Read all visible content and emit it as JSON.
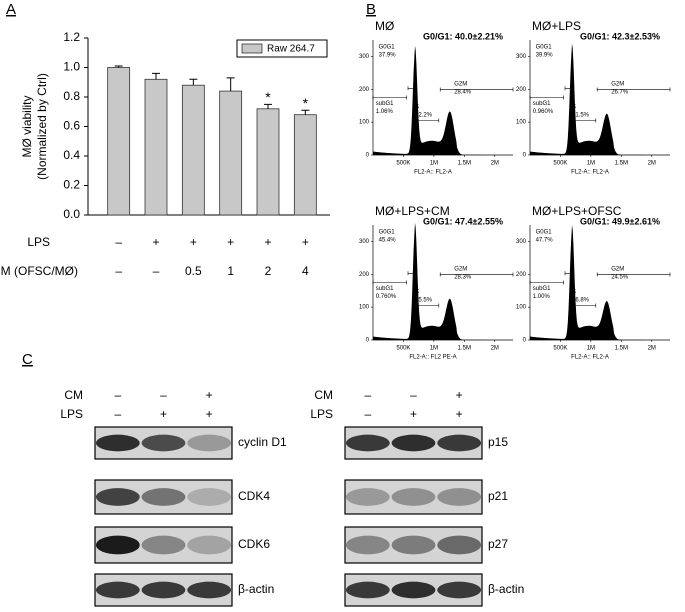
{
  "panel_labels": [
    "A",
    "B",
    "C"
  ],
  "chart_data": {
    "type": "bar",
    "ylabel": [
      "MØ viability",
      "(Normalized by Ctrl)"
    ],
    "categories": [
      null,
      null,
      null,
      null,
      null,
      null
    ],
    "series": [
      {
        "name": "Raw 264.7",
        "color": "#c8c8c8",
        "values": [
          1.0,
          0.92,
          0.88,
          0.84,
          0.72,
          0.68
        ],
        "errors": [
          0.01,
          0.04,
          0.04,
          0.09,
          0.03,
          0.03
        ]
      }
    ],
    "star_labels": [
      null,
      null,
      null,
      null,
      "*",
      "*"
    ],
    "ylim": [
      0,
      1.2
    ],
    "yticks": [
      {
        "value": 0,
        "label": "0.0"
      },
      {
        "value": 0.2,
        "label": "0.2"
      },
      {
        "value": 0.4,
        "label": "0.4"
      },
      {
        "value": 0.6,
        "label": "0.6"
      },
      {
        "value": 0.8,
        "label": "0.8"
      },
      {
        "value": 1.0,
        "label": "1.0"
      },
      {
        "value": 1.2,
        "label": "1.2"
      }
    ],
    "legend": "upper right",
    "treatment_rows": [
      {
        "name": "LPS",
        "values": [
          "–",
          "+",
          "+",
          "+",
          "+",
          "+"
        ]
      },
      {
        "name": "CM (OFSC/MØ)",
        "values": [
          "–",
          "–",
          "0.5",
          "1",
          "2",
          "4"
        ]
      }
    ]
  },
  "flow": {
    "ylim": [
      0,
      350
    ],
    "yticks": [
      0,
      100,
      200,
      300
    ],
    "xlim": [
      0,
      2300000
    ],
    "xticks": [
      {
        "value": 500000,
        "label": "500K"
      },
      {
        "value": 1000000,
        "label": "1M"
      },
      {
        "value": 1500000,
        "label": "1.5M"
      },
      {
        "value": 2000000,
        "label": "2M"
      }
    ],
    "gate_names": [
      "G0G1",
      "subG1",
      "S",
      "G2M"
    ],
    "panels": [
      {
        "title": "MØ",
        "summary": "G0/G1: 40.0±2.21%",
        "gates": [
          "37.9%",
          "1.06%",
          "22.2%",
          "28.4%"
        ],
        "xlabel": "FL2-A:: FL2-A"
      },
      {
        "title": "MØ+LPS",
        "summary": "G0/G1: 42.3±2.53%",
        "gates": [
          "39.9%",
          "0.960%",
          "21.5%",
          "26.7%"
        ],
        "xlabel": "FL2-A:: FL2-A"
      },
      {
        "title": "MØ+LPS+CM",
        "summary": "G0/G1: 47.4±2.55%",
        "gates": [
          "45.4%",
          "0.760%",
          "25.5%",
          "28.3%"
        ],
        "xlabel": "FL2-A:: FL2 PE-A"
      },
      {
        "title": "MØ+LPS+OFSC",
        "summary": "G0/G1: 49.9±2.61%",
        "gates": [
          "47.7%",
          "1.00%",
          "26.8%",
          "24.5%"
        ],
        "xlabel": "FL2-A:: FL2-A"
      }
    ]
  },
  "western": {
    "blots": [
      {
        "rows": [
          {
            "name": "CM",
            "values": [
              "–",
              "–",
              "+"
            ]
          },
          {
            "name": "LPS",
            "values": [
              "–",
              "+",
              "+"
            ]
          }
        ],
        "bands": [
          "cyclin D1",
          "CDK4",
          "CDK6",
          "β-actin"
        ]
      },
      {
        "rows": [
          {
            "name": "CM",
            "values": [
              "–",
              "–",
              "+"
            ]
          },
          {
            "name": "LPS",
            "values": [
              "–",
              "+",
              "+"
            ]
          }
        ],
        "bands": [
          "p15",
          "p21",
          "p27",
          "β-actin"
        ]
      }
    ]
  }
}
